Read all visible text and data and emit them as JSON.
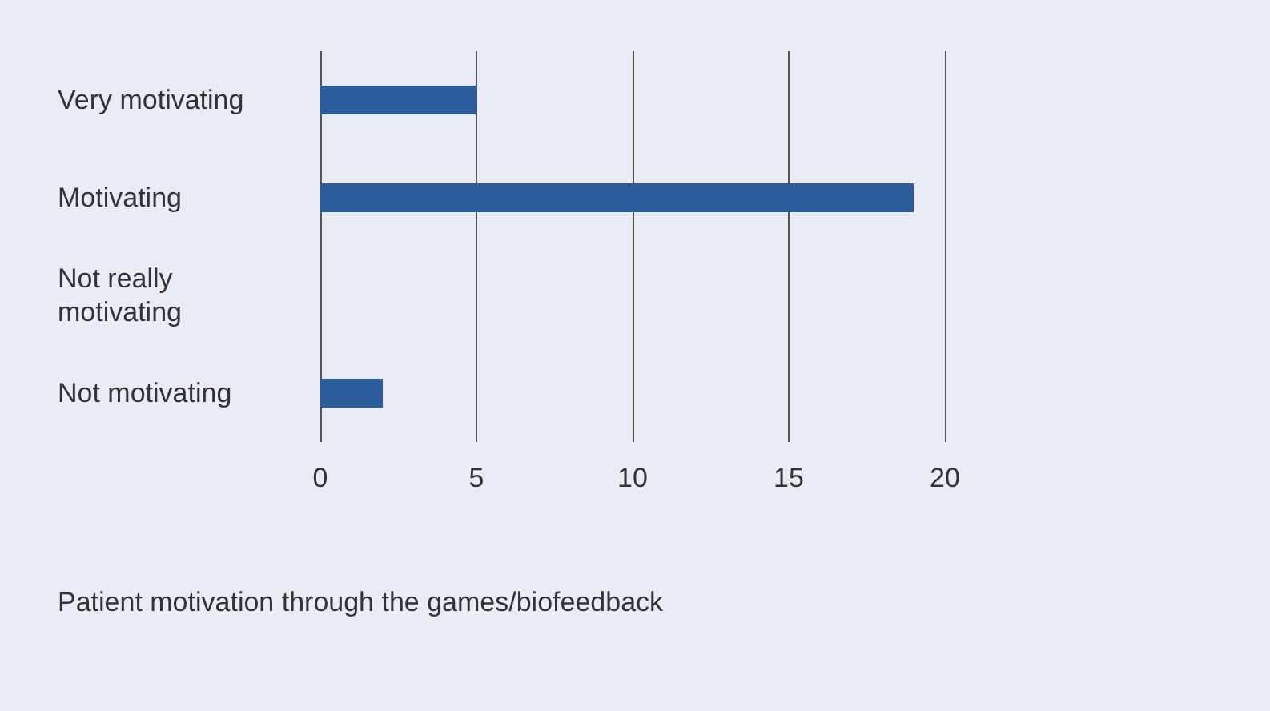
{
  "chart_data": {
    "type": "bar",
    "orientation": "horizontal",
    "categories": [
      "Very motivating",
      "Motivating",
      "Not really motivating",
      "Not motivating"
    ],
    "values": [
      5,
      19,
      0,
      2
    ],
    "color": "#2b5c9b",
    "xlim": [
      0,
      20
    ],
    "xticks": [
      0,
      5,
      10,
      15,
      20
    ],
    "grid": "x",
    "annotations": [
      "Patient motivation through the games/biofeedback"
    ]
  }
}
